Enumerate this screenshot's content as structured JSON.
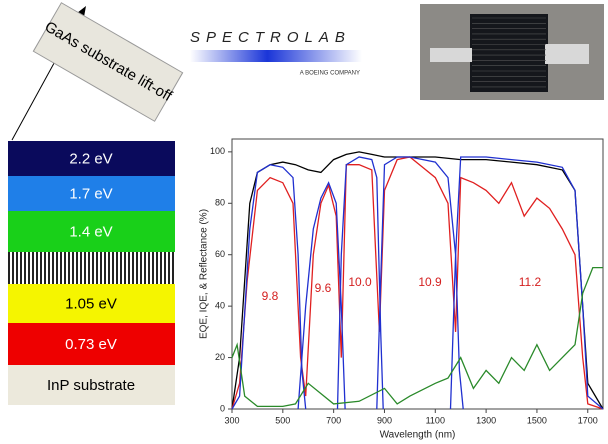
{
  "lift_off_label": "GaAs substrate lift-off",
  "layers": [
    {
      "label": "2.2 eV",
      "color": "#0a0a5c",
      "text_color": "#ffffff"
    },
    {
      "label": "1.7 eV",
      "color": "#1f7fe8",
      "text_color": "#ffffff"
    },
    {
      "label": "1.4 eV",
      "color": "#19d019",
      "text_color": "#ffffff"
    },
    {
      "label": "1.05 eV",
      "color": "#f5f500",
      "text_color": "#000000"
    },
    {
      "label": "0.73 eV",
      "color": "#ee0000",
      "text_color": "#ffffff"
    },
    {
      "label": "InP substrate",
      "color": "#ece9dc",
      "text_color": "#000000"
    }
  ],
  "logo": {
    "name": "SPECTROLAB",
    "tagline": "A BOEING COMPANY"
  },
  "chart_data": {
    "type": "line",
    "y_label": "EQE, IQE, & Reflectance (%)",
    "x_label": "Wavelength (nm)",
    "xlim": [
      300,
      1760
    ],
    "ylim": [
      0,
      105
    ],
    "xticks": [
      300,
      500,
      700,
      900,
      1100,
      1300,
      1500,
      1700
    ],
    "yticks": [
      0,
      20,
      40,
      60,
      80,
      100
    ],
    "grid": false,
    "annotations": [
      "9.8",
      "9.6",
      "10.0",
      "10.9",
      "11.2"
    ],
    "annotation_color": "#d42020",
    "series": [
      {
        "color": "#000000",
        "x": [
          300,
          330,
          370,
          400,
          450,
          500,
          550,
          600,
          650,
          700,
          750,
          800,
          850,
          900,
          1000,
          1100,
          1200,
          1300,
          1400,
          1500,
          1600,
          1650,
          1680,
          1700,
          1760
        ],
        "values": [
          0,
          20,
          80,
          92,
          95,
          96,
          95,
          93,
          92,
          97,
          99,
          100,
          99,
          98,
          98,
          98,
          97,
          97,
          96,
          95,
          93,
          85,
          40,
          10,
          0
        ]
      },
      {
        "color": "#e02020",
        "x": [
          300,
          330,
          360,
          400,
          450,
          500,
          540,
          570,
          590,
          620,
          650,
          680,
          710,
          730,
          750,
          800,
          850,
          880,
          900,
          950,
          1000,
          1050,
          1100,
          1150,
          1180,
          1200,
          1250,
          1300,
          1350,
          1400,
          1450,
          1500,
          1550,
          1600,
          1650,
          1680,
          1700,
          1760
        ],
        "values": [
          0,
          10,
          50,
          85,
          90,
          88,
          80,
          20,
          5,
          60,
          80,
          87,
          75,
          20,
          95,
          95,
          93,
          30,
          85,
          97,
          98,
          94,
          90,
          80,
          30,
          90,
          88,
          85,
          80,
          88,
          75,
          82,
          78,
          70,
          60,
          20,
          2,
          0
        ]
      },
      {
        "color": "#2030d0",
        "x": [
          300,
          330,
          370,
          400,
          450,
          500,
          540,
          560,
          575,
          590
        ],
        "values": [
          0,
          5,
          70,
          92,
          95,
          94,
          90,
          60,
          15,
          0
        ]
      },
      {
        "color": "#2030d0",
        "x": [
          560,
          590,
          620,
          650,
          680,
          710,
          730,
          745
        ],
        "values": [
          0,
          40,
          70,
          82,
          88,
          80,
          40,
          0
        ]
      },
      {
        "color": "#2030d0",
        "x": [
          715,
          730,
          750,
          800,
          850,
          870,
          885,
          895
        ],
        "values": [
          0,
          60,
          95,
          98,
          97,
          90,
          30,
          0
        ]
      },
      {
        "color": "#2030d0",
        "x": [
          870,
          885,
          900,
          950,
          1000,
          1100,
          1150,
          1180,
          1195,
          1210
        ],
        "values": [
          0,
          50,
          95,
          98,
          98,
          96,
          90,
          60,
          15,
          0
        ]
      },
      {
        "color": "#2030d0",
        "x": [
          1160,
          1180,
          1200,
          1300,
          1400,
          1500,
          1600,
          1650,
          1680,
          1700,
          1760
        ],
        "values": [
          0,
          60,
          98,
          98,
          97,
          96,
          94,
          85,
          40,
          5,
          0
        ]
      },
      {
        "color": "#2a8a2a",
        "x": [
          300,
          320,
          350,
          400,
          500,
          550,
          600,
          700,
          800,
          900,
          950,
          1000,
          1100,
          1150,
          1200,
          1250,
          1300,
          1350,
          1400,
          1450,
          1500,
          1550,
          1600,
          1650,
          1680,
          1720,
          1760
        ],
        "values": [
          20,
          25,
          5,
          1,
          1,
          2,
          10,
          2,
          3,
          8,
          2,
          5,
          10,
          12,
          20,
          8,
          15,
          10,
          20,
          15,
          25,
          15,
          20,
          25,
          45,
          55,
          55
        ]
      }
    ]
  }
}
